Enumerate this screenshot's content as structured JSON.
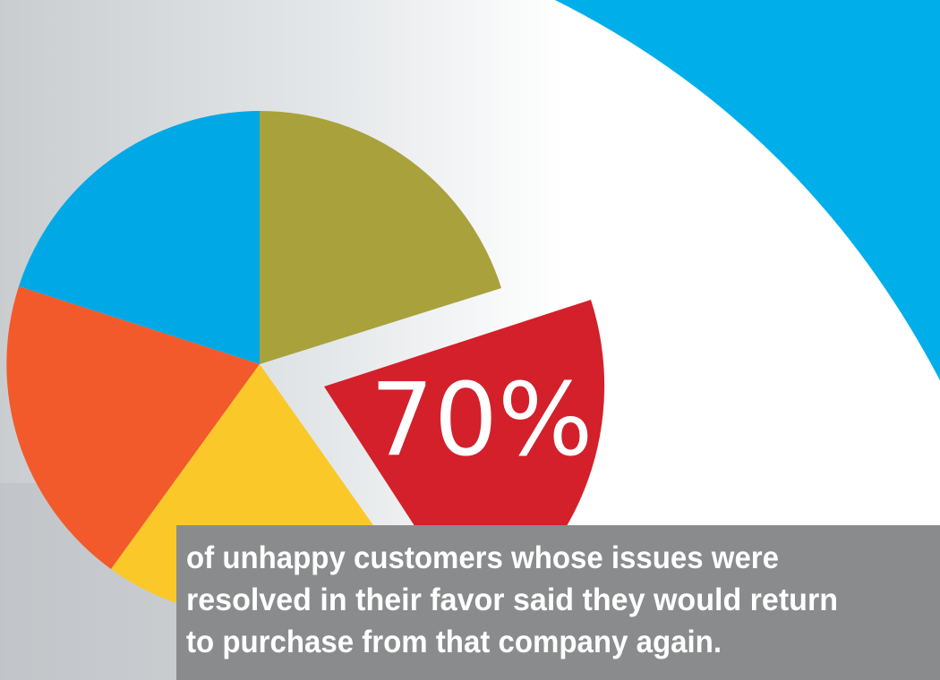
{
  "stat": {
    "text": "70%"
  },
  "caption": {
    "lines": [
      "of unhappy customers whose issues were",
      "resolved in their favor said they would return",
      "to purchase from that company again."
    ]
  }
}
